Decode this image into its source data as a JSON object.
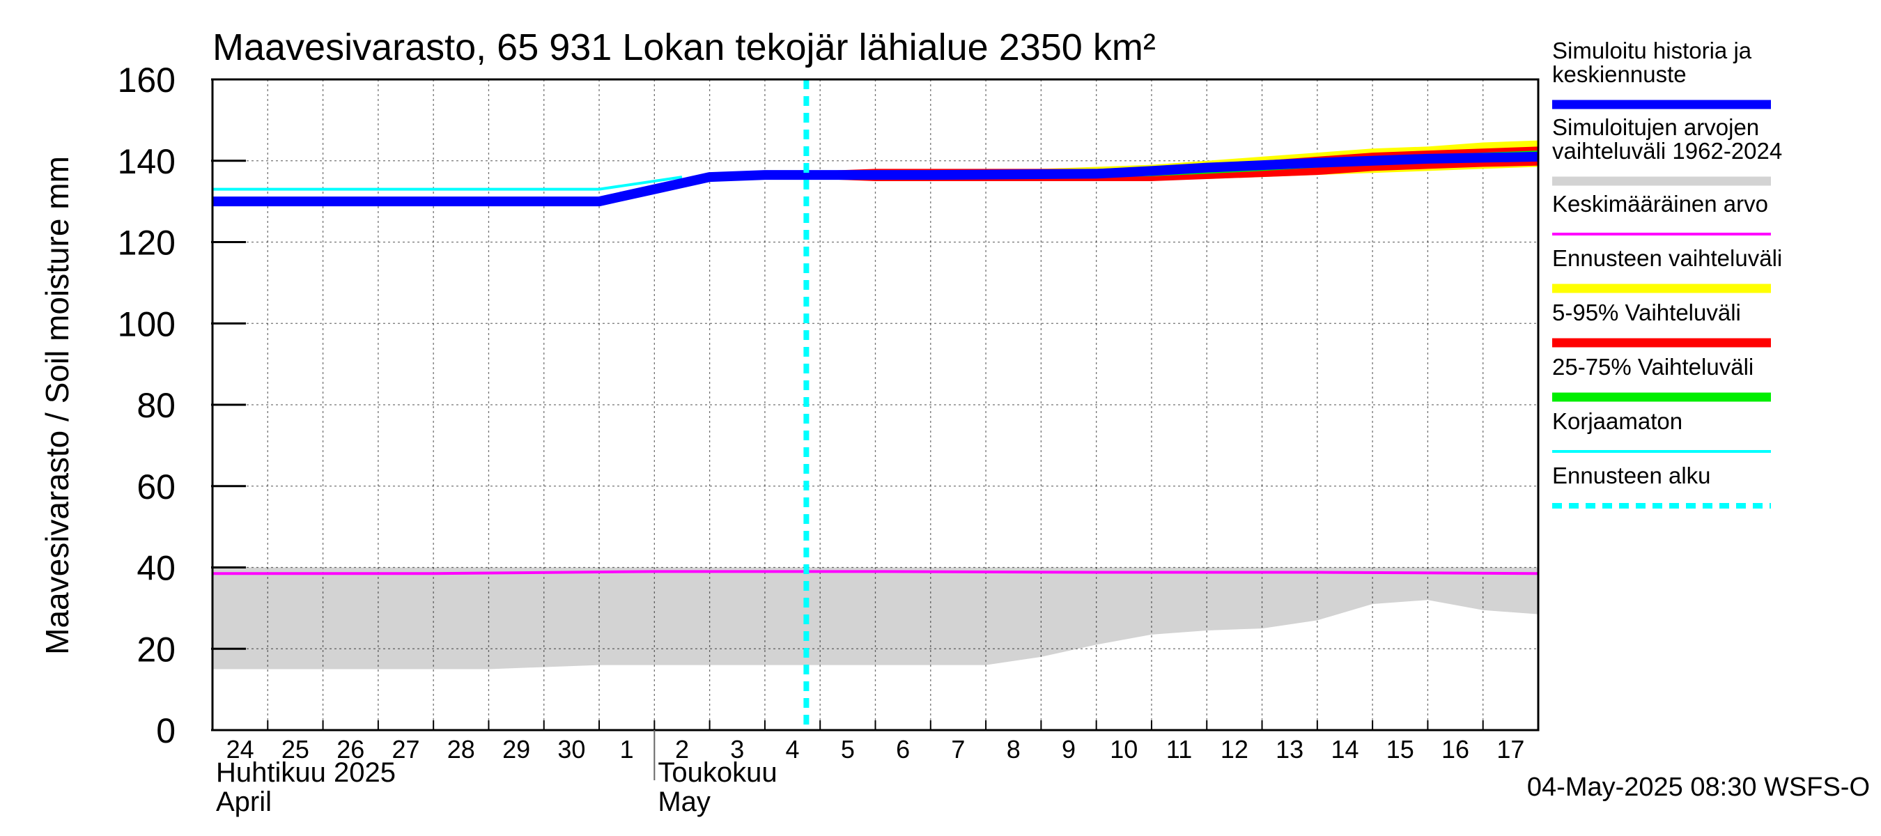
{
  "chart_data": {
    "type": "line",
    "title": "Maavesivarasto, 65 931 Lokan tekojär lähialue 2350 km²",
    "ylabel": "Maavesivarasto / Soil moisture   mm",
    "ylim": [
      0,
      160
    ],
    "yticks": [
      0,
      20,
      40,
      60,
      80,
      100,
      120,
      140,
      160
    ],
    "x_range_days": [
      0,
      24
    ],
    "x_tick_labels": [
      "24",
      "25",
      "26",
      "27",
      "28",
      "29",
      "30",
      "1",
      "2",
      "3",
      "4",
      "5",
      "6",
      "7",
      "8",
      "9",
      "10",
      "11",
      "12",
      "13",
      "14",
      "15",
      "16",
      "17"
    ],
    "month_labels": [
      {
        "line1": "Huhtikuu  2025",
        "line2": "April",
        "day": 0
      },
      {
        "line1": "Toukokuu",
        "line2": "May",
        "day": 8
      }
    ],
    "grid": true,
    "forecast_start_day": 10.75,
    "footer": "04-May-2025 08:30 WSFS-O",
    "legend": [
      {
        "label": "Simuloitu historia ja\nkeskiennuste",
        "color": "#0000ff",
        "style": "thick"
      },
      {
        "label": "Simuloitujen arvojen\nvaihteluväli 1962-2024",
        "color": "#d3d3d3",
        "style": "thick"
      },
      {
        "label": "Keskimääräinen arvo",
        "color": "#ff00ff",
        "style": "thin"
      },
      {
        "label": "Ennusteen vaihteluväli",
        "color": "#ffff00",
        "style": "thick"
      },
      {
        "label": "5-95% Vaihteluväli",
        "color": "#ff0000",
        "style": "thick"
      },
      {
        "label": "25-75% Vaihteluväli",
        "color": "#00ee00",
        "style": "thick"
      },
      {
        "label": "Korjaamaton",
        "color": "#00ffff",
        "style": "thin"
      },
      {
        "label": "Ennusteen alku",
        "color": "#00ffff",
        "style": "dashed"
      }
    ],
    "series": [
      {
        "key": "hist_range",
        "type": "band",
        "color": "#d3d3d3",
        "x": [
          0,
          3,
          5,
          7,
          8,
          9,
          10,
          12,
          13,
          14,
          15,
          16,
          17,
          18,
          19,
          20,
          21,
          22,
          23,
          24
        ],
        "low": [
          15,
          15,
          15,
          16,
          16,
          16,
          16,
          16,
          16,
          16,
          18,
          21,
          23.5,
          24.5,
          25,
          27,
          31,
          32,
          29.5,
          28.5
        ],
        "high": [
          40,
          40,
          40,
          40,
          40,
          40,
          40,
          40,
          40,
          40,
          40,
          40,
          40,
          40,
          40,
          40,
          40,
          40,
          40,
          40
        ]
      },
      {
        "key": "mean",
        "type": "line",
        "color": "#ff00ff",
        "x": [
          0,
          4,
          8,
          12,
          16,
          20,
          24
        ],
        "y": [
          38.5,
          38.5,
          39,
          39,
          38.8,
          38.8,
          38.5
        ]
      },
      {
        "key": "uncorrected",
        "type": "line",
        "color": "#00ffff",
        "x": [
          0,
          7,
          8,
          8.5
        ],
        "y": [
          133,
          133,
          135,
          136
        ]
      },
      {
        "key": "forecast_range",
        "type": "band",
        "color": "#ffff00",
        "x": [
          10.75,
          11,
          12,
          13,
          14,
          15,
          16,
          17,
          18,
          19,
          20,
          21,
          22,
          23,
          24
        ],
        "low": [
          136.5,
          136,
          135.5,
          135.5,
          135.5,
          135.5,
          135.5,
          135.5,
          135.5,
          136,
          136.5,
          137,
          137.5,
          138,
          138.5
        ],
        "high": [
          136.5,
          137,
          137.5,
          137.5,
          137.5,
          138,
          138.5,
          139,
          140,
          141,
          142,
          143,
          143.5,
          144.5,
          145
        ]
      },
      {
        "key": "range_5_95",
        "type": "band",
        "color": "#ff0000",
        "x": [
          10.75,
          11,
          12,
          13,
          14,
          15,
          16,
          17,
          18,
          19,
          20,
          21,
          22,
          23,
          24
        ],
        "low": [
          136.5,
          135.5,
          135,
          135,
          135,
          135,
          135,
          135,
          135.5,
          136,
          136.5,
          137.5,
          138,
          138.5,
          138.8
        ],
        "high": [
          136.5,
          137.5,
          138,
          138,
          138,
          138,
          138,
          138.5,
          139,
          140,
          141,
          142,
          142.5,
          143,
          143.5
        ]
      },
      {
        "key": "range_25_75",
        "type": "band",
        "color": "#00ee00",
        "x": [
          10.75,
          11,
          12,
          13,
          14,
          15,
          16,
          17,
          18,
          19,
          20,
          21,
          22,
          23,
          24
        ],
        "low": [
          136.5,
          136,
          136,
          136,
          136,
          136,
          136,
          136.2,
          136.8,
          137.5,
          138.3,
          139,
          139.5,
          140,
          140.5
        ],
        "high": [
          136.5,
          137,
          137.2,
          137.2,
          137.2,
          137.2,
          137.5,
          138,
          138.8,
          139.5,
          140.3,
          141,
          141.5,
          142,
          142.5
        ]
      },
      {
        "key": "median",
        "type": "line",
        "color": "#0000ff",
        "x": [
          0,
          3,
          5,
          7,
          8,
          9,
          10,
          11,
          13,
          16,
          17,
          18,
          20,
          22,
          24
        ],
        "y": [
          130,
          130,
          130,
          130,
          133,
          136,
          136.5,
          136.5,
          136.5,
          136.8,
          137.5,
          138.3,
          139.5,
          140.5,
          141
        ]
      }
    ]
  }
}
